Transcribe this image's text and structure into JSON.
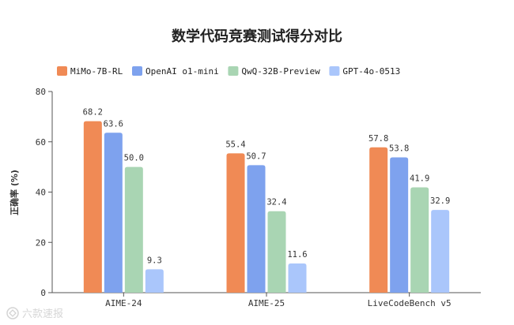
{
  "chart_data": {
    "type": "bar",
    "title": "数学代码竞赛测试得分对比",
    "ylabel": "正确率 (%)",
    "xlabel": "",
    "ylim": [
      0,
      80
    ],
    "yticks": [
      0,
      20,
      40,
      60,
      80
    ],
    "grid": false,
    "legend_position": "top",
    "categories": [
      "AIME-24",
      "AIME-25",
      "LiveCodeBench v5"
    ],
    "series": [
      {
        "name": "MiMo-7B-RL",
        "color": "#f08a55",
        "values": [
          68.2,
          55.4,
          57.8
        ]
      },
      {
        "name": "OpenAI o1-mini",
        "color": "#7ea2ee",
        "values": [
          63.6,
          50.7,
          53.8
        ]
      },
      {
        "name": "QwQ-32B-Preview",
        "color": "#a9d5b3",
        "values": [
          50.0,
          32.4,
          41.9
        ]
      },
      {
        "name": "GPT-4o-0513",
        "color": "#aac6fb",
        "values": [
          9.3,
          11.6,
          32.9
        ]
      }
    ]
  },
  "watermark": {
    "text": "六款速报"
  }
}
